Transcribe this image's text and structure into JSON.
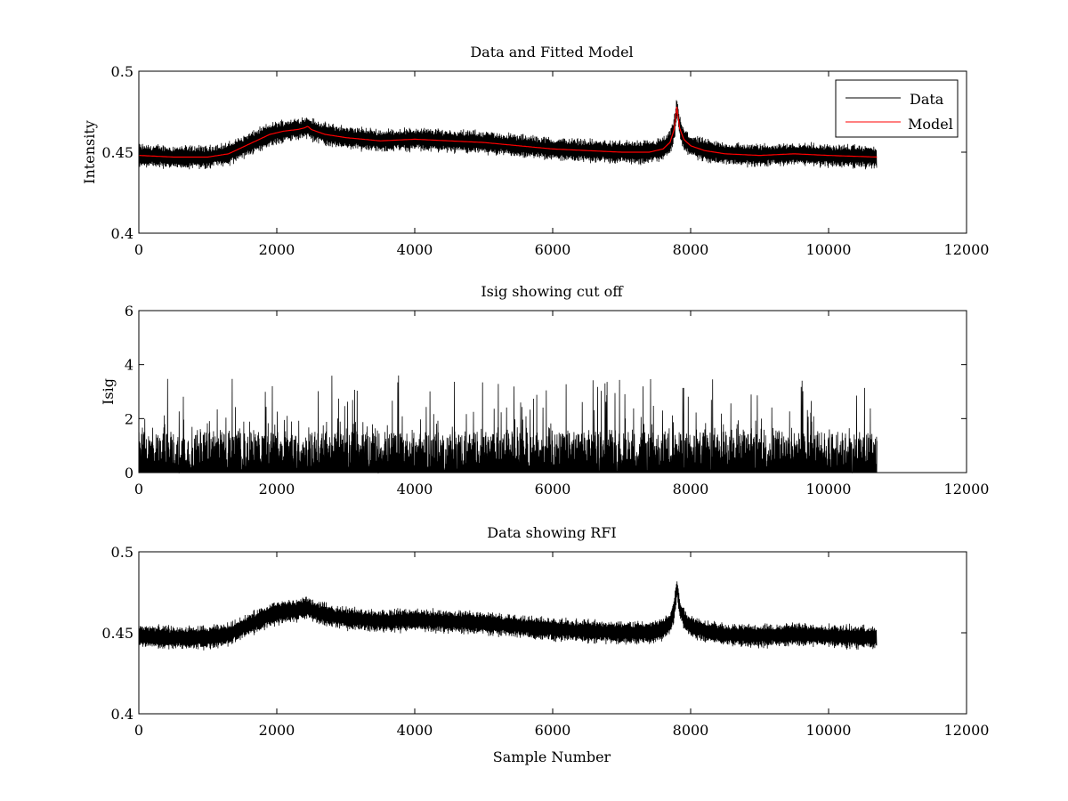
{
  "figure": {
    "background": "#ffffff"
  },
  "chart_data": [
    {
      "type": "line",
      "title": "Data and Fitted Model",
      "xlabel": "",
      "ylabel": "Intensity",
      "xlim": [
        0,
        12000
      ],
      "ylim": [
        0.4,
        0.5
      ],
      "xticks": [
        0,
        2000,
        4000,
        6000,
        8000,
        10000,
        12000
      ],
      "yticks": [
        0.4,
        0.45,
        0.5
      ],
      "xtick_labels": [
        "0",
        "2000",
        "4000",
        "6000",
        "8000",
        "10000",
        "12000"
      ],
      "ytick_labels": [
        "0.4",
        "0.45",
        "0.5"
      ],
      "legend": {
        "placement": "top-right",
        "entries": [
          "Data",
          "Model"
        ]
      },
      "series": [
        {
          "name": "Data",
          "color": "#000000",
          "x_range": [
            0,
            10700
          ],
          "noise_halfwidth": 0.0065,
          "baseline": "Model",
          "note": "noisy measured intensity around model"
        },
        {
          "name": "Model",
          "color": "#ff0000",
          "x": [
            0,
            500,
            1000,
            1300,
            1600,
            1900,
            2100,
            2300,
            2400,
            2450,
            2500,
            2700,
            3000,
            3500,
            4000,
            4500,
            5000,
            5500,
            6000,
            6500,
            7000,
            7400,
            7600,
            7700,
            7760,
            7800,
            7840,
            7900,
            8000,
            8200,
            8500,
            9000,
            9500,
            10000,
            10700
          ],
          "y": [
            0.448,
            0.447,
            0.447,
            0.449,
            0.455,
            0.461,
            0.463,
            0.464,
            0.465,
            0.466,
            0.464,
            0.461,
            0.459,
            0.457,
            0.458,
            0.457,
            0.456,
            0.454,
            0.452,
            0.451,
            0.45,
            0.45,
            0.452,
            0.456,
            0.464,
            0.478,
            0.465,
            0.458,
            0.454,
            0.451,
            0.449,
            0.448,
            0.449,
            0.448,
            0.447
          ]
        }
      ]
    },
    {
      "type": "line",
      "title": "Isig showing cut off",
      "xlabel": "",
      "ylabel": "Isig",
      "xlim": [
        0,
        12000
      ],
      "ylim": [
        0,
        6
      ],
      "xticks": [
        0,
        2000,
        4000,
        6000,
        8000,
        10000,
        12000
      ],
      "yticks": [
        0,
        2,
        4,
        6
      ],
      "xtick_labels": [
        "0",
        "2000",
        "4000",
        "6000",
        "8000",
        "10000",
        "12000"
      ],
      "ytick_labels": [
        "0",
        "2",
        "4",
        "6"
      ],
      "series": [
        {
          "name": "Isig",
          "color": "#000000",
          "x_range": [
            0,
            10700
          ],
          "typical_max": 1.5,
          "peak_max": 3.6,
          "note": "absolute normalized deviation, dense noise from 0 to about 1.5 with spikes up to 3.6"
        }
      ]
    },
    {
      "type": "line",
      "title": "Data showing RFI",
      "xlabel": "Sample Number",
      "ylabel": "",
      "xlim": [
        0,
        12000
      ],
      "ylim": [
        0.4,
        0.5
      ],
      "xticks": [
        0,
        2000,
        4000,
        6000,
        8000,
        10000,
        12000
      ],
      "yticks": [
        0.4,
        0.45,
        0.5
      ],
      "xtick_labels": [
        "0",
        "2000",
        "4000",
        "6000",
        "8000",
        "10000",
        "12000"
      ],
      "ytick_labels": [
        "0.4",
        "0.45",
        "0.5"
      ],
      "series": [
        {
          "name": "Data",
          "color": "#000000",
          "x_range": [
            0,
            10700
          ],
          "noise_halfwidth": 0.0065,
          "note": "same intensity data as top panel"
        }
      ]
    }
  ]
}
